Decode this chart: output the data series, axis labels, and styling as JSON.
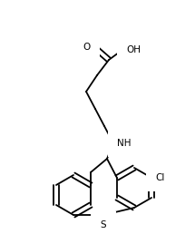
{
  "background_color": "#ffffff",
  "line_color": "#000000",
  "line_width": 1.3,
  "font_size": 7.5,
  "figsize": [
    2.15,
    2.58
  ],
  "dpi": 100,
  "atoms": {
    "OH": {
      "label": "OH",
      "ha": "left",
      "va": "center"
    },
    "O": {
      "label": "O",
      "ha": "right",
      "va": "center"
    },
    "NH": {
      "label": "NH",
      "ha": "left",
      "va": "center"
    },
    "Cl": {
      "label": "Cl",
      "ha": "left",
      "va": "center"
    },
    "S": {
      "label": "S",
      "ha": "center",
      "va": "center"
    }
  }
}
